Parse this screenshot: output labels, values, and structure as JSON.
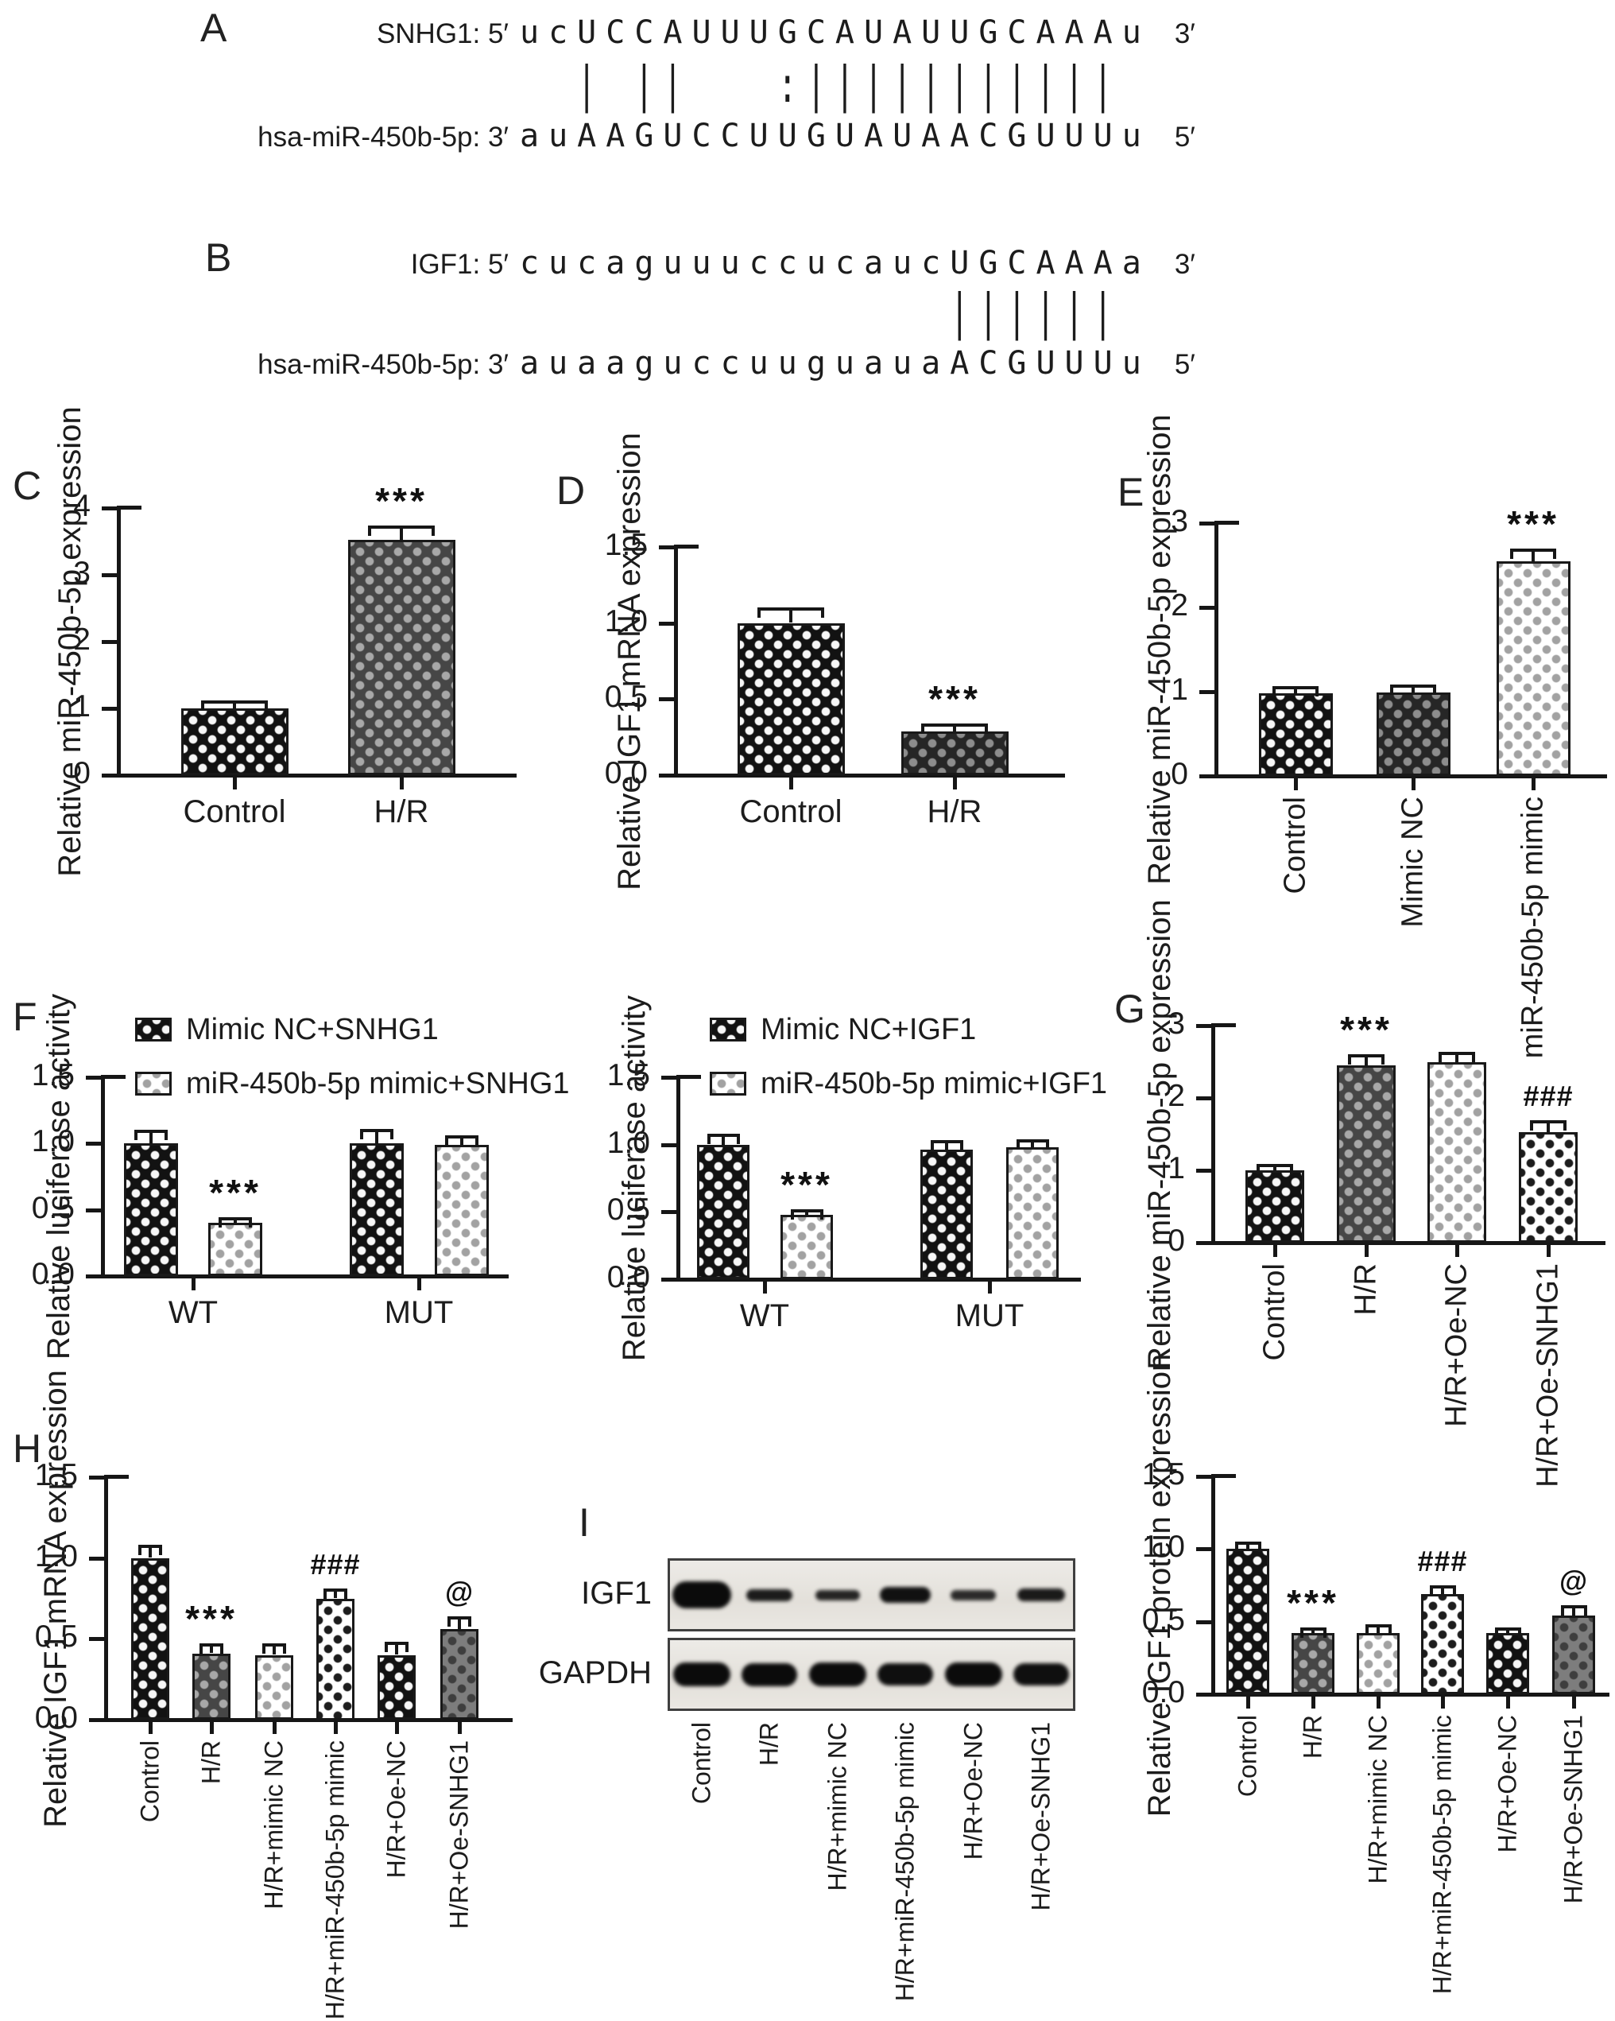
{
  "panels": {
    "A": {
      "label": "A",
      "line1": {
        "label": "SNHG1: 5′",
        "seq": "ucUCCAUUUGCAUAUUGCAAAu",
        "suffix": "3′"
      },
      "match": "  | ||   :||||||||||| ",
      "line2": {
        "label": "hsa-miR-450b-5p: 3′",
        "seq": "auAAGUCCUUGUAUAACGUUUu",
        "suffix": "5′"
      }
    },
    "B": {
      "label": "B",
      "line1": {
        "label": "IGF1: 5′",
        "seq": "cucaguuuccucaucUGCAAAa",
        "suffix": "3′"
      },
      "match": "               |||||| ",
      "line2": {
        "label": "hsa-miR-450b-5p: 3′",
        "seq": "auaaguccuuguauaACGUUUu",
        "suffix": "5′"
      }
    },
    "C": {
      "label": "C"
    },
    "D": {
      "label": "D"
    },
    "E": {
      "label": "E"
    },
    "F": {
      "label": "F"
    },
    "G": {
      "label": "G"
    },
    "H": {
      "label": "H"
    },
    "I": {
      "label": "I"
    }
  },
  "chart_data": [
    {
      "id": "C",
      "type": "bar",
      "title": "",
      "xlabel": "",
      "ylabel": "Relative miR-450b-5p expression",
      "ylim": [
        0,
        4
      ],
      "yticks": [
        "0",
        "1",
        "2",
        "3",
        "4"
      ],
      "grid": false,
      "categories": [
        "Control",
        "H/R"
      ],
      "values": [
        1.0,
        3.52
      ],
      "errors": [
        0.1,
        0.2
      ],
      "sig": [
        "",
        "***"
      ],
      "patterns": [
        "bw",
        "dg"
      ]
    },
    {
      "id": "D",
      "type": "bar",
      "title": "",
      "xlabel": "",
      "ylabel": "Relative IGF1 mRNA expression",
      "ylim": [
        0,
        1.5
      ],
      "yticks": [
        "0.0",
        "0.5",
        "1.0",
        "1.5"
      ],
      "grid": false,
      "categories": [
        "Control",
        "H/R"
      ],
      "values": [
        1.0,
        0.29
      ],
      "errors": [
        0.09,
        0.04
      ],
      "sig": [
        "",
        "***"
      ],
      "patterns": [
        "bw",
        "dk"
      ]
    },
    {
      "id": "E",
      "type": "bar",
      "title": "",
      "xlabel": "",
      "ylabel": "Relative miR-450b-5p expression",
      "ylim": [
        0,
        3
      ],
      "yticks": [
        "0",
        "1",
        "2",
        "3"
      ],
      "grid": false,
      "categories": [
        "Control",
        "Mimic NC",
        "miR-450b-5p mimic"
      ],
      "values": [
        0.98,
        0.99,
        2.55
      ],
      "errors": [
        0.07,
        0.08,
        0.13
      ],
      "sig": [
        "",
        "",
        "***"
      ],
      "patterns": [
        "bw",
        "dk",
        "lg"
      ]
    },
    {
      "id": "F1",
      "type": "grouped-bar",
      "title": "",
      "xlabel": "",
      "ylabel": "Relative luciferase activity",
      "ylim": [
        0,
        1.5
      ],
      "yticks": [
        "0.0",
        "0.5",
        "1.0",
        "1.5"
      ],
      "grid": false,
      "group_labels": [
        "WT",
        "MUT"
      ],
      "legend": [
        {
          "label": "Mimic NC+SNHG1",
          "pattern": "bw"
        },
        {
          "label": "miR-450b-5p mimic+SNHG1",
          "pattern": "lg"
        }
      ],
      "values": [
        1.0,
        0.4,
        1.0,
        0.99
      ],
      "errors": [
        0.09,
        0.03,
        0.1,
        0.06
      ],
      "sig": [
        "",
        "***",
        "",
        ""
      ],
      "patterns": [
        "bw",
        "lg",
        "bw",
        "lg"
      ]
    },
    {
      "id": "F2",
      "type": "grouped-bar",
      "title": "",
      "xlabel": "",
      "ylabel": "Relative luciferase activity",
      "ylim": [
        0,
        1.5
      ],
      "yticks": [
        "0.0",
        "0.5",
        "1.0",
        "1.5"
      ],
      "grid": false,
      "group_labels": [
        "WT",
        "MUT"
      ],
      "legend": [
        {
          "label": "Mimic NC+IGF1",
          "pattern": "bw"
        },
        {
          "label": "miR-450b-5p mimic+IGF1",
          "pattern": "lg"
        }
      ],
      "values": [
        1.0,
        0.48,
        0.96,
        0.98
      ],
      "errors": [
        0.07,
        0.03,
        0.06,
        0.05
      ],
      "sig": [
        "",
        "***",
        "",
        ""
      ],
      "patterns": [
        "bw",
        "lg",
        "bw",
        "lg"
      ]
    },
    {
      "id": "G",
      "type": "bar",
      "title": "",
      "xlabel": "",
      "ylabel": "Relative miR-450b-5p expression",
      "ylim": [
        0,
        3
      ],
      "yticks": [
        "0",
        "1",
        "2",
        "3"
      ],
      "grid": false,
      "categories": [
        "Control",
        "H/R",
        "H/R+Oe-NC",
        "H/R+Oe-SNHG1"
      ],
      "values": [
        1.0,
        2.45,
        2.49,
        1.53
      ],
      "errors": [
        0.07,
        0.13,
        0.12,
        0.14
      ],
      "sig": [
        "",
        "***",
        "",
        "###"
      ],
      "patterns": [
        "bw",
        "dg",
        "lg",
        "wb"
      ]
    },
    {
      "id": "H",
      "type": "bar",
      "title": "",
      "xlabel": "",
      "ylabel": "Relative IGF1 mRNA expression",
      "ylim": [
        0,
        1.5
      ],
      "yticks": [
        "0.0",
        "0.5",
        "1.0",
        "1.5"
      ],
      "grid": false,
      "categories": [
        "Control",
        "H/R",
        "H/R+mimic NC",
        "H/R+miR-450b-5p mimic",
        "H/R+Oe-NC",
        "H/R+Oe-SNHG1"
      ],
      "values": [
        1.0,
        0.41,
        0.4,
        0.75,
        0.4,
        0.56
      ],
      "errors": [
        0.07,
        0.05,
        0.06,
        0.05,
        0.07,
        0.07
      ],
      "sig": [
        "",
        "***",
        "",
        "###",
        "",
        "@"
      ],
      "patterns": [
        "bw",
        "dg",
        "lg",
        "wb",
        "bw",
        "gy"
      ]
    },
    {
      "id": "I",
      "type": "bar",
      "title": "",
      "xlabel": "",
      "ylabel": "Relative IGF1 protein expression",
      "ylim": [
        0,
        1.5
      ],
      "yticks": [
        "0.0",
        "0.5",
        "1.0",
        "1.5"
      ],
      "grid": false,
      "categories": [
        "Control",
        "H/R",
        "H/R+mimic NC",
        "H/R+miR-450b-5p mimic",
        "H/R+Oe-NC",
        "H/R+Oe-SNHG1"
      ],
      "values": [
        1.0,
        0.42,
        0.42,
        0.69,
        0.42,
        0.54
      ],
      "errors": [
        0.04,
        0.03,
        0.05,
        0.05,
        0.03,
        0.06
      ],
      "sig": [
        "",
        "***",
        "",
        "###",
        "",
        "@"
      ],
      "patterns": [
        "bw",
        "dg",
        "lg",
        "wb",
        "bw",
        "gy"
      ]
    }
  ],
  "western_blot": {
    "rows": [
      {
        "name": "IGF1",
        "bands": [
          {
            "w": 74,
            "h": 34,
            "o": 1
          },
          {
            "w": 58,
            "h": 15,
            "o": 0.92
          },
          {
            "w": 56,
            "h": 13,
            "o": 0.88
          },
          {
            "w": 64,
            "h": 20,
            "o": 0.97
          },
          {
            "w": 57,
            "h": 13,
            "o": 0.85
          },
          {
            "w": 60,
            "h": 16,
            "o": 0.93
          }
        ]
      },
      {
        "name": "GAPDH",
        "bands": [
          {
            "w": 72,
            "h": 30,
            "o": 1
          },
          {
            "w": 70,
            "h": 29,
            "o": 1
          },
          {
            "w": 72,
            "h": 30,
            "o": 1
          },
          {
            "w": 70,
            "h": 28,
            "o": 0.98
          },
          {
            "w": 72,
            "h": 30,
            "o": 1
          },
          {
            "w": 70,
            "h": 28,
            "o": 0.98
          }
        ]
      }
    ],
    "lanes": [
      "Control",
      "H/R",
      "H/R+mimic NC",
      "H/R+miR-450b-5p mimic",
      "H/R+Oe-NC",
      "H/R+Oe-SNHG1"
    ]
  }
}
